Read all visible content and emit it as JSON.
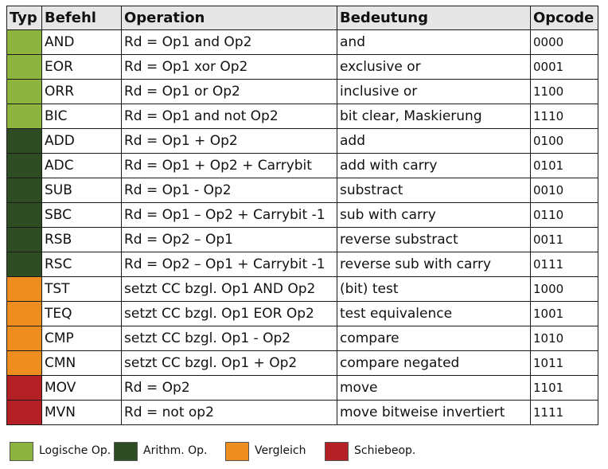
{
  "table": {
    "headers": {
      "typ": "Typ",
      "befehl": "Befehl",
      "operation": "Operation",
      "bedeutung": "Bedeutung",
      "opcode": "Opcode"
    },
    "rows": [
      {
        "type": "logic",
        "befehl": "AND",
        "operation": "Rd = Op1 and Op2",
        "bedeutung": "and",
        "opcode": "0000"
      },
      {
        "type": "logic",
        "befehl": "EOR",
        "operation": "Rd = Op1 xor Op2",
        "bedeutung": "exclusive or",
        "opcode": "0001"
      },
      {
        "type": "logic",
        "befehl": "ORR",
        "operation": "Rd = Op1 or Op2",
        "bedeutung": "inclusive or",
        "opcode": "1100"
      },
      {
        "type": "logic",
        "befehl": "BIC",
        "operation": "Rd = Op1 and not Op2",
        "bedeutung": "bit clear, Maskierung",
        "opcode": "1110"
      },
      {
        "type": "arith",
        "befehl": "ADD",
        "operation": "Rd = Op1 + Op2",
        "bedeutung": "add",
        "opcode": "0100"
      },
      {
        "type": "arith",
        "befehl": "ADC",
        "operation": "Rd = Op1 + Op2 + Carrybit",
        "bedeutung": "add with carry",
        "opcode": "0101"
      },
      {
        "type": "arith",
        "befehl": "SUB",
        "operation": "Rd = Op1 - Op2",
        "bedeutung": "substract",
        "opcode": "0010"
      },
      {
        "type": "arith",
        "befehl": "SBC",
        "operation": "Rd = Op1 – Op2 + Carrybit -1",
        "bedeutung": "sub with carry",
        "opcode": "0110"
      },
      {
        "type": "arith",
        "befehl": "RSB",
        "operation": "Rd = Op2 – Op1",
        "bedeutung": "reverse substract",
        "opcode": "0011"
      },
      {
        "type": "arith",
        "befehl": "RSC",
        "operation": "Rd = Op2 – Op1 + Carrybit -1",
        "bedeutung": "reverse sub with carry",
        "opcode": "0111"
      },
      {
        "type": "compare",
        "befehl": "TST",
        "operation": "setzt CC bzgl. Op1 AND Op2",
        "bedeutung": "(bit) test",
        "opcode": "1000"
      },
      {
        "type": "compare",
        "befehl": "TEQ",
        "operation": "setzt CC bzgl. Op1 EOR Op2",
        "bedeutung": "test equivalence",
        "opcode": "1001"
      },
      {
        "type": "compare",
        "befehl": "CMP",
        "operation": "setzt CC bzgl. Op1 - Op2",
        "bedeutung": "compare",
        "opcode": "1010"
      },
      {
        "type": "compare",
        "befehl": "CMN",
        "operation": "setzt CC bzgl. Op1 + Op2",
        "bedeutung": "compare negated",
        "opcode": "1011"
      },
      {
        "type": "shift",
        "befehl": "MOV",
        "operation": "Rd = Op2",
        "bedeutung": "move",
        "opcode": "1101"
      },
      {
        "type": "shift",
        "befehl": "MVN",
        "operation": "Rd = not op2",
        "bedeutung": "move bitweise invertiert",
        "opcode": "1111"
      }
    ]
  },
  "type_colors": {
    "logic": "#8db43e",
    "arith": "#2f4d23",
    "compare": "#ee8e20",
    "shift": "#b51f26"
  },
  "legend": [
    {
      "type": "logic",
      "label": "Logische Op."
    },
    {
      "type": "arith",
      "label": "Arithm. Op."
    },
    {
      "type": "compare",
      "label": "Vergleich"
    },
    {
      "type": "shift",
      "label": "Schiebeop."
    }
  ]
}
